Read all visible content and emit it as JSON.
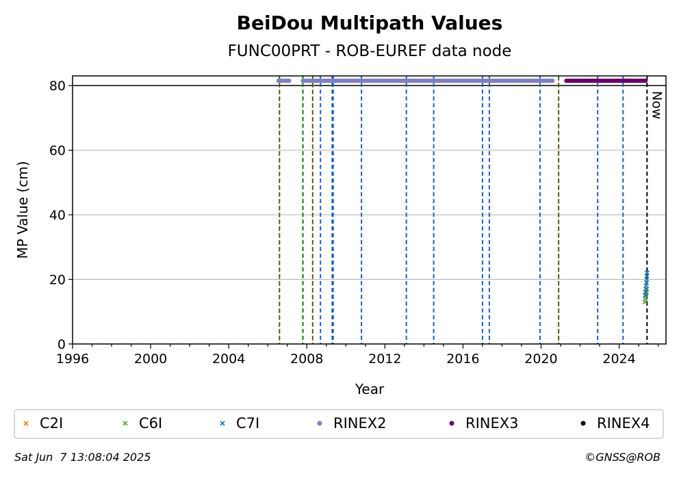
{
  "chart_data": {
    "type": "scatter",
    "title": "BeiDou Multipath Values",
    "subtitle": "FUNC00PRT - ROB-EUREF data node",
    "xlabel": "Year",
    "ylabel": "MP Value (cm)",
    "xlim": [
      1996,
      2026.4
    ],
    "ylim": [
      0,
      83
    ],
    "x_ticks": [
      "1996",
      "2000",
      "2004",
      "2008",
      "2012",
      "2016",
      "2020",
      "2024"
    ],
    "y_ticks": [
      "0",
      "20",
      "40",
      "60",
      "80"
    ],
    "grid": "horizontal",
    "reference_line": 80,
    "now_label": "Now",
    "now_x": 2025.43,
    "green_vlines": [
      2006.6,
      2007.8,
      2008.3,
      2020.9
    ],
    "red_vlines": [
      2006.6,
      2008.3,
      2020.9
    ],
    "blue_vlines": [
      2008.7,
      2009.3,
      2009.35,
      2010.8,
      2013.1,
      2014.5,
      2017.0,
      2017.35,
      2019.95,
      2022.9,
      2024.2
    ],
    "series": [
      {
        "name": "C2I",
        "marker": "x",
        "color": "#ff7f0e",
        "x": [
          2025.35,
          2025.37,
          2025.4
        ],
        "y": [
          14,
          15,
          16
        ]
      },
      {
        "name": "C6I",
        "marker": "x",
        "color": "#5fa641",
        "x": [
          2025.32,
          2025.35,
          2025.37,
          2025.4,
          2025.42
        ],
        "y": [
          13,
          14,
          15,
          16,
          17
        ]
      },
      {
        "name": "C7I",
        "marker": "x",
        "color": "#1f77b4",
        "x": [
          2025.33,
          2025.35,
          2025.37,
          2025.38,
          2025.4,
          2025.41,
          2025.42,
          2025.43
        ],
        "y": [
          15,
          16,
          17,
          18,
          19,
          20,
          21,
          22
        ]
      },
      {
        "name": "RINEX2",
        "marker": "o",
        "color": "#8080c0",
        "segments": [
          [
            2006.55,
            2007.1
          ],
          [
            2007.8,
            2020.6
          ]
        ],
        "y": 81.5
      },
      {
        "name": "RINEX3",
        "marker": "o",
        "color": "#6a006a",
        "segments": [
          [
            2021.3,
            2025.4
          ]
        ],
        "y": 81.5
      },
      {
        "name": "RINEX4",
        "marker": "o",
        "color": "#000000",
        "segments": [],
        "y": 81.5
      }
    ],
    "legend_position": "bottom",
    "legend": [
      "C2I",
      "C6I",
      "C7I",
      "RINEX2",
      "RINEX3",
      "RINEX4"
    ]
  },
  "footer": {
    "timestamp": "Sat Jun  7 13:08:04 2025",
    "credit": "©GNSS@ROB"
  },
  "colors": {
    "green_line": "#008000",
    "red_line": "#d62728",
    "blue_line": "#1f5fbf",
    "grid": "#b0b0b0"
  }
}
